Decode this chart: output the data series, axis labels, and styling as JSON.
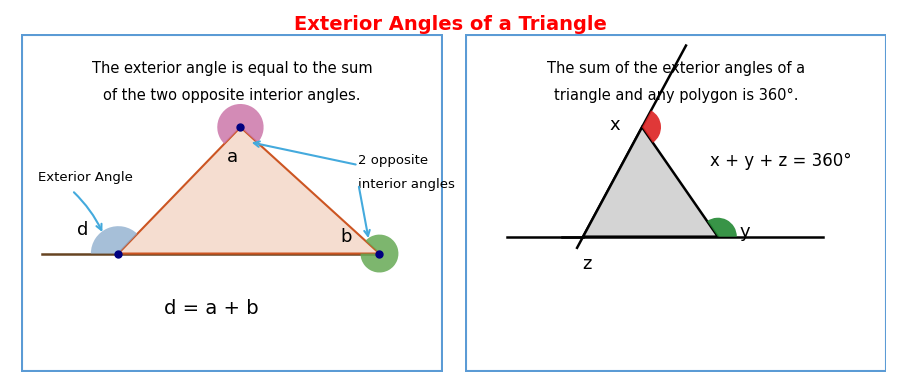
{
  "title": "Exterior Angles of a Triangle",
  "title_color": "#ff0000",
  "title_fontsize": 14,
  "bg_color": "#ffffff",
  "border_color": "#5b9bd5",
  "left_text1": "The exterior angle is equal to the sum",
  "left_text2": "of the two opposite interior angles.",
  "right_text1": "The sum of the exterior angles of a",
  "right_text2": "triangle and any polygon is 360°.",
  "left_formula": "d = a + b",
  "right_formula": "x + y + z = 360°",
  "tri_fill": "#f5ddd0",
  "tri_stroke": "#cc5522",
  "angle_a_color": "#cc77aa",
  "angle_b_color": "#66aa55",
  "angle_d_color": "#88aacc",
  "arrow_color": "#44aadd",
  "dot_color": "#000080",
  "right_tri_fill": "#d4d4d4",
  "angle_x_color": "#dd2222",
  "angle_y_color": "#228833",
  "angle_z_color": "#2244cc"
}
